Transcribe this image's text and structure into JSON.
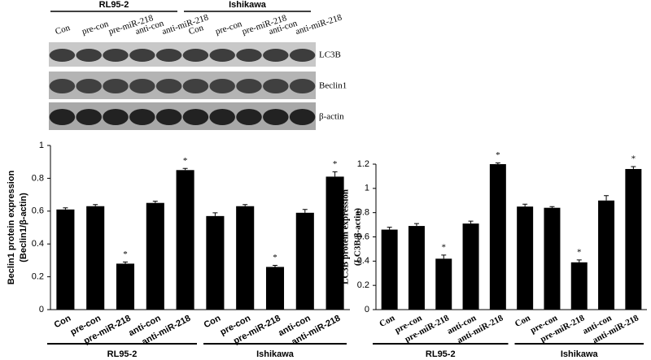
{
  "blot": {
    "groups": [
      "RL95-2",
      "Ishikawa"
    ],
    "lanes": [
      "Con",
      "pre-con",
      "pre-miR-218",
      "anti-con",
      "anti-miR-218",
      "Con",
      "pre-con",
      "pre-miR-218",
      "anti-con",
      "anti-miR-218"
    ],
    "bands": [
      "LC3B",
      "Beclin1",
      "β-actin"
    ]
  },
  "chart_data": [
    {
      "type": "bar",
      "ylabel": [
        "Beclin1 protein expression",
        "(Beclin1/β-actin)"
      ],
      "categories": [
        "Con",
        "pre-con",
        "pre-miR-218",
        "anti-con",
        "anti-miR-218",
        "Con",
        "pre-con",
        "pre-miR-218",
        "anti-con",
        "anti-miR-218"
      ],
      "groups": [
        "RL95-2",
        "Ishikawa"
      ],
      "values": [
        0.61,
        0.63,
        0.28,
        0.65,
        0.85,
        0.57,
        0.63,
        0.26,
        0.59,
        0.81
      ],
      "errors": [
        0.01,
        0.01,
        0.01,
        0.01,
        0.01,
        0.02,
        0.01,
        0.01,
        0.02,
        0.03
      ],
      "annotations": [
        {
          "at": 2,
          "text": "*"
        },
        {
          "at": 4,
          "text": "*"
        },
        {
          "at": 7,
          "text": "*"
        },
        {
          "at": 9,
          "text": "*"
        }
      ],
      "color": "#000000",
      "ylim": [
        0,
        1
      ],
      "yticks": [
        0,
        0.2,
        0.4,
        0.6,
        0.8,
        1
      ]
    },
    {
      "type": "bar",
      "ylabel": [
        "LC3B protein expression",
        "(LC3B/β-actin)"
      ],
      "categories": [
        "Con",
        "pre-con",
        "pre-miR-218",
        "anti-con",
        "anti-miR-218",
        "Con",
        "pre-con",
        "pre-miR-218",
        "anti-con",
        "anti-miR-218"
      ],
      "groups": [
        "RL95-2",
        "Ishikawa"
      ],
      "values": [
        0.66,
        0.69,
        0.42,
        0.71,
        1.2,
        0.85,
        0.84,
        0.39,
        0.9,
        1.16
      ],
      "errors": [
        0.02,
        0.02,
        0.03,
        0.02,
        0.01,
        0.02,
        0.01,
        0.02,
        0.04,
        0.02
      ],
      "annotations": [
        {
          "at": 2,
          "text": "*"
        },
        {
          "at": 4,
          "text": "*"
        },
        {
          "at": 7,
          "text": "*"
        },
        {
          "at": 9,
          "text": "*"
        }
      ],
      "color": "#000000",
      "ylim": [
        0,
        1.2
      ],
      "yticks": [
        0,
        0.2,
        0.4,
        0.6,
        0.8,
        1,
        1.2
      ]
    }
  ]
}
